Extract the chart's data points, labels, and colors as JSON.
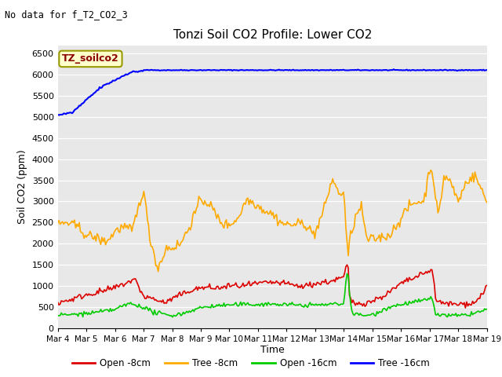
{
  "title": "Tonzi Soil CO2 Profile: Lower CO2",
  "no_data_text": "No data for f_T2_CO2_3",
  "legend_box_text": "TZ_soilco2",
  "xlabel": "Time",
  "ylabel": "Soil CO2 (ppm)",
  "ylim": [
    0,
    6700
  ],
  "yticks": [
    0,
    500,
    1000,
    1500,
    2000,
    2500,
    3000,
    3500,
    4000,
    4500,
    5000,
    5500,
    6000,
    6500
  ],
  "xtick_labels": [
    "Mar 4",
    "Mar 5",
    "Mar 6",
    "Mar 7",
    "Mar 8",
    "Mar 9",
    "Mar 10",
    "Mar 11",
    "Mar 12",
    "Mar 13",
    "Mar 14",
    "Mar 15",
    "Mar 16",
    "Mar 17",
    "Mar 18",
    "Mar 19"
  ],
  "fig_bg_color": "#ffffff",
  "plot_bg_color": "#e8e8e8",
  "line_colors": {
    "open_8cm": "#dd0000",
    "tree_8cm": "#ffaa00",
    "open_16cm": "#00cc00",
    "tree_16cm": "#0000ff"
  },
  "legend_entries": [
    "Open -8cm",
    "Tree -8cm",
    "Open -16cm",
    "Tree -16cm"
  ],
  "legend_colors": [
    "#dd0000",
    "#ffaa00",
    "#00cc00",
    "#0000ff"
  ]
}
